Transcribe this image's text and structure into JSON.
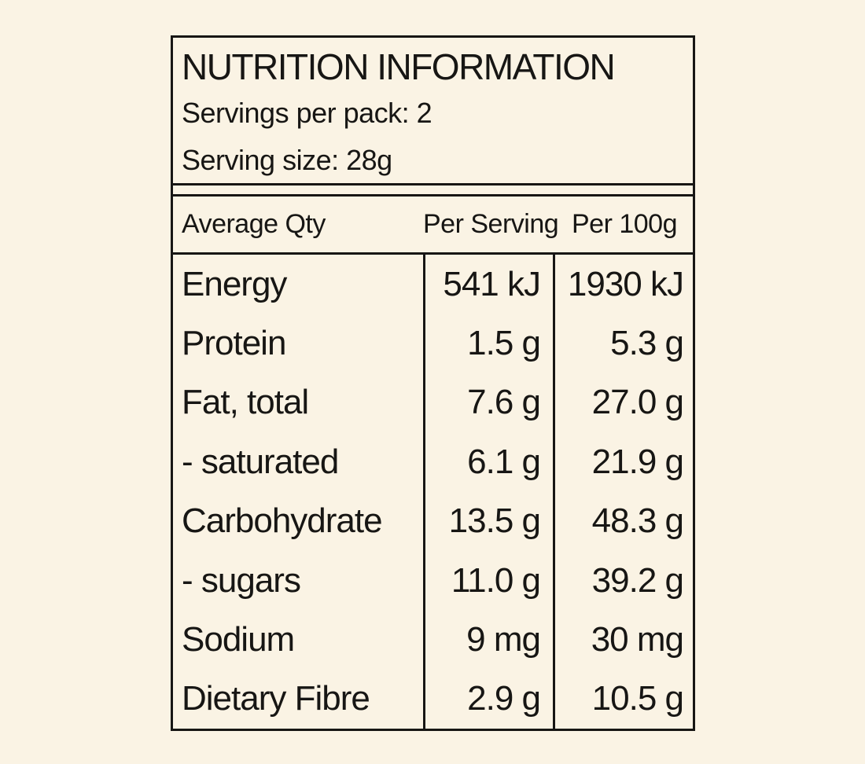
{
  "colors": {
    "background": "#faf3e4",
    "ink": "#171614"
  },
  "label": {
    "title": "NUTRITION INFORMATION",
    "servings_per_pack": "Servings per pack: 2",
    "serving_size": "Serving size: 28g",
    "header": {
      "qty": "Average Qty",
      "per_serving": "Per Serving",
      "per_100g": "Per 100g"
    },
    "rows": [
      {
        "name": "Energy",
        "per_serving": "541 kJ",
        "per_100g": "1930 kJ"
      },
      {
        "name": "Protein",
        "per_serving": "1.5 g",
        "per_100g": "5.3 g"
      },
      {
        "name": "Fat, total",
        "per_serving": "7.6 g",
        "per_100g": "27.0 g"
      },
      {
        "name": "- saturated",
        "per_serving": "6.1 g",
        "per_100g": "21.9 g"
      },
      {
        "name": "Carbohydrate",
        "per_serving": "13.5 g",
        "per_100g": "48.3 g"
      },
      {
        "name": "- sugars",
        "per_serving": "11.0 g",
        "per_100g": "39.2 g"
      },
      {
        "name": "Sodium",
        "per_serving": "9 mg",
        "per_100g": "30 mg"
      },
      {
        "name": "Dietary Fibre",
        "per_serving": "2.9 g",
        "per_100g": "10.5 g"
      }
    ]
  }
}
